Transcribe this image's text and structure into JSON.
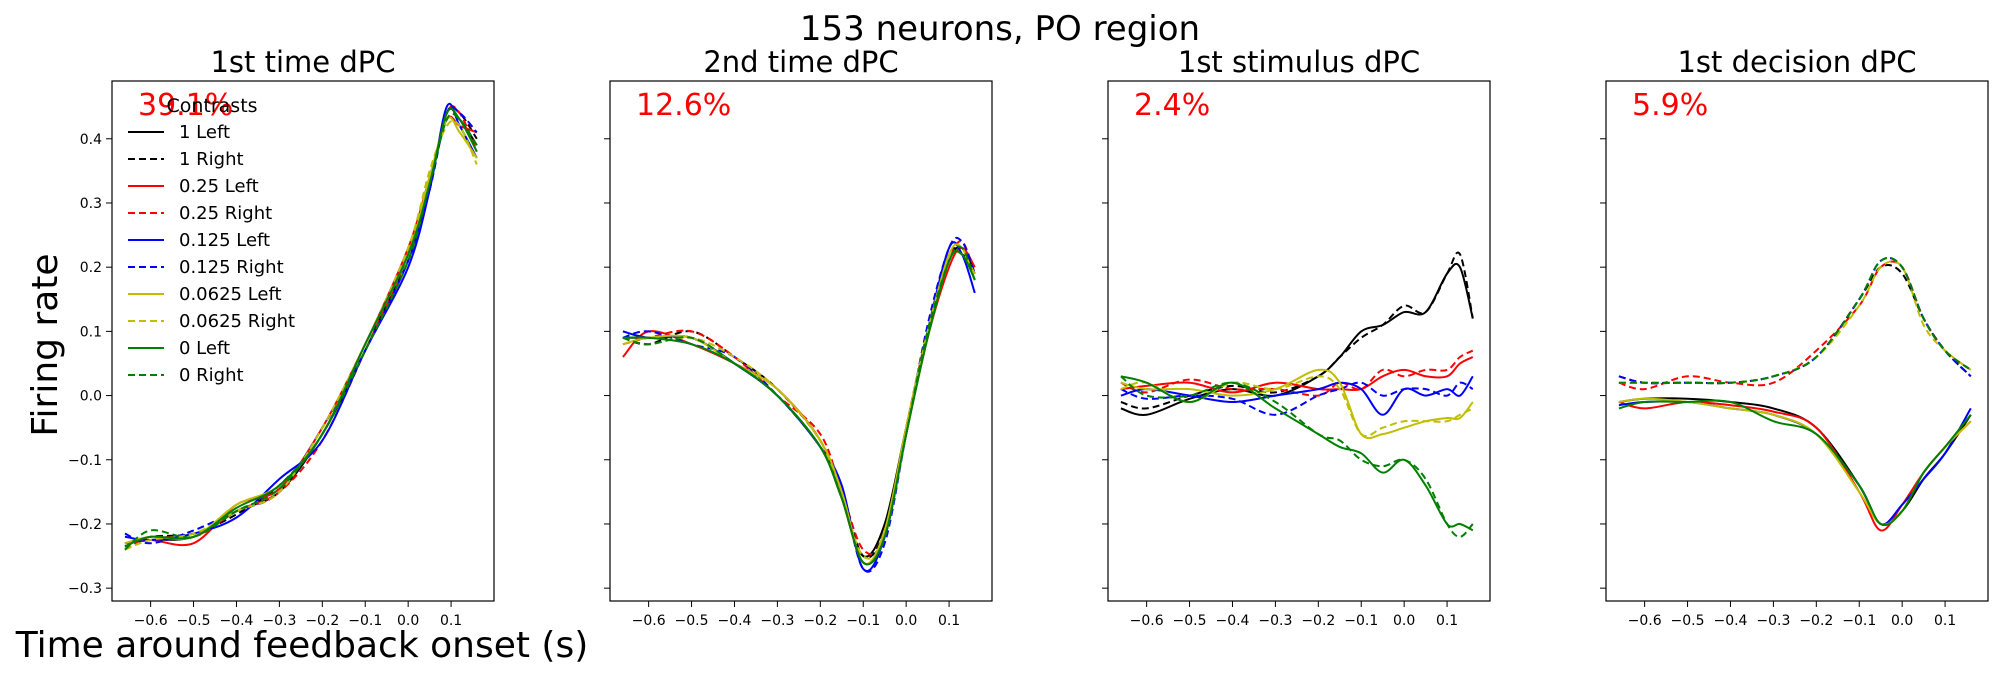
{
  "figure": {
    "suptitle": "153 neurons, PO region",
    "xlabel": "Time around feedback onset (s)",
    "ylabel": "Firing rate"
  },
  "legend": {
    "title": "Contrasts",
    "entries": [
      "1 Left",
      "1 Right",
      "0.25 Left",
      "0.25 Right",
      "0.125 Left",
      "0.125 Right",
      "0.0625 Left",
      "0.0625 Right",
      "0 Left",
      "0 Right"
    ]
  },
  "series_styles": [
    {
      "color": "#000000",
      "dash": "solid"
    },
    {
      "color": "#000000",
      "dash": "dashed"
    },
    {
      "color": "#ff0000",
      "dash": "solid"
    },
    {
      "color": "#ff0000",
      "dash": "dashed"
    },
    {
      "color": "#0000ff",
      "dash": "solid"
    },
    {
      "color": "#0000ff",
      "dash": "dashed"
    },
    {
      "color": "#bfbf00",
      "dash": "solid"
    },
    {
      "color": "#bfbf00",
      "dash": "dashed"
    },
    {
      "color": "#008000",
      "dash": "solid"
    },
    {
      "color": "#008000",
      "dash": "dashed"
    }
  ],
  "chart_data": [
    {
      "type": "line",
      "title": "1st time dPC",
      "variance_label": "39.1%",
      "xlim": [
        -0.69,
        0.2
      ],
      "ylim": [
        -0.32,
        0.49
      ],
      "xticks": [
        -0.6,
        -0.5,
        -0.4,
        -0.3,
        -0.2,
        -0.1,
        0.0,
        0.1
      ],
      "xtick_labels": [
        "−0.6",
        "−0.5",
        "−0.4",
        "−0.3",
        "−0.2",
        "−0.1",
        "0.0",
        "0.1"
      ],
      "yticks": [
        -0.3,
        -0.2,
        -0.1,
        0.0,
        0.1,
        0.2,
        0.3,
        0.4
      ],
      "ytick_labels": [
        "−0.3",
        "−0.2",
        "−0.1",
        "0.0",
        "0.1",
        "0.2",
        "0.3",
        "0.4"
      ],
      "x": [
        -0.66,
        -0.6,
        -0.5,
        -0.4,
        -0.3,
        -0.2,
        -0.1,
        0.0,
        0.05,
        0.09,
        0.12,
        0.16
      ],
      "series": [
        {
          "values": [
            -0.23,
            -0.225,
            -0.22,
            -0.18,
            -0.15,
            -0.06,
            0.07,
            0.22,
            0.33,
            0.44,
            0.43,
            0.39
          ]
        },
        {
          "values": [
            -0.235,
            -0.22,
            -0.215,
            -0.185,
            -0.14,
            -0.06,
            0.08,
            0.21,
            0.33,
            0.44,
            0.44,
            0.4
          ]
        },
        {
          "values": [
            -0.23,
            -0.225,
            -0.23,
            -0.17,
            -0.145,
            -0.05,
            0.08,
            0.23,
            0.34,
            0.43,
            0.42,
            0.41
          ]
        },
        {
          "values": [
            -0.24,
            -0.22,
            -0.22,
            -0.18,
            -0.15,
            -0.07,
            0.07,
            0.22,
            0.33,
            0.44,
            0.44,
            0.38
          ]
        },
        {
          "values": [
            -0.22,
            -0.225,
            -0.215,
            -0.19,
            -0.13,
            -0.07,
            0.07,
            0.2,
            0.32,
            0.45,
            0.42,
            0.37
          ]
        },
        {
          "values": [
            -0.215,
            -0.23,
            -0.21,
            -0.18,
            -0.15,
            -0.05,
            0.07,
            0.21,
            0.32,
            0.44,
            0.44,
            0.41
          ]
        },
        {
          "values": [
            -0.23,
            -0.22,
            -0.22,
            -0.17,
            -0.14,
            -0.06,
            0.08,
            0.22,
            0.34,
            0.43,
            0.41,
            0.37
          ]
        },
        {
          "values": [
            -0.24,
            -0.225,
            -0.215,
            -0.18,
            -0.15,
            -0.05,
            0.08,
            0.23,
            0.35,
            0.42,
            0.42,
            0.36
          ]
        },
        {
          "values": [
            -0.235,
            -0.22,
            -0.22,
            -0.175,
            -0.14,
            -0.06,
            0.08,
            0.22,
            0.33,
            0.44,
            0.43,
            0.38
          ]
        },
        {
          "values": [
            -0.24,
            -0.21,
            -0.22,
            -0.18,
            -0.145,
            -0.06,
            0.07,
            0.21,
            0.33,
            0.43,
            0.43,
            0.39
          ]
        }
      ]
    },
    {
      "type": "line",
      "title": "2nd time dPC",
      "variance_label": "12.6%",
      "xlim": [
        -0.69,
        0.2
      ],
      "ylim": [
        -0.32,
        0.49
      ],
      "xticks": [
        -0.6,
        -0.5,
        -0.4,
        -0.3,
        -0.2,
        -0.1,
        0.0,
        0.1
      ],
      "xtick_labels": [
        "−0.6",
        "−0.5",
        "−0.4",
        "−0.3",
        "−0.2",
        "−0.1",
        "0.0",
        "0.1"
      ],
      "yticks": [
        -0.3,
        -0.2,
        -0.1,
        0.0,
        0.1,
        0.2,
        0.3,
        0.4
      ],
      "ytick_labels": [],
      "x": [
        -0.66,
        -0.6,
        -0.5,
        -0.4,
        -0.3,
        -0.2,
        -0.15,
        -0.1,
        -0.05,
        0.0,
        0.05,
        0.1,
        0.13,
        0.16
      ],
      "series": [
        {
          "values": [
            0.09,
            0.09,
            0.09,
            0.05,
            0.0,
            -0.08,
            -0.16,
            -0.25,
            -0.2,
            -0.05,
            0.1,
            0.21,
            0.23,
            0.19
          ]
        },
        {
          "values": [
            0.09,
            0.08,
            0.1,
            0.06,
            0.01,
            -0.07,
            -0.15,
            -0.25,
            -0.21,
            -0.06,
            0.1,
            0.22,
            0.22,
            0.2
          ]
        },
        {
          "values": [
            0.06,
            0.1,
            0.08,
            0.05,
            0.01,
            -0.07,
            -0.16,
            -0.26,
            -0.22,
            -0.06,
            0.09,
            0.2,
            0.23,
            0.2
          ]
        },
        {
          "values": [
            0.08,
            0.09,
            0.1,
            0.06,
            0.0,
            -0.06,
            -0.15,
            -0.24,
            -0.22,
            -0.05,
            0.1,
            0.21,
            0.24,
            0.19
          ]
        },
        {
          "values": [
            0.1,
            0.09,
            0.09,
            0.05,
            0.0,
            -0.08,
            -0.14,
            -0.27,
            -0.22,
            -0.06,
            0.1,
            0.23,
            0.22,
            0.16
          ]
        },
        {
          "values": [
            0.09,
            0.1,
            0.08,
            0.06,
            0.0,
            -0.08,
            -0.15,
            -0.27,
            -0.23,
            -0.06,
            0.11,
            0.23,
            0.24,
            0.19
          ]
        },
        {
          "values": [
            0.08,
            0.09,
            0.09,
            0.05,
            0.01,
            -0.07,
            -0.15,
            -0.26,
            -0.21,
            -0.05,
            0.1,
            0.22,
            0.23,
            0.18
          ]
        },
        {
          "values": [
            0.09,
            0.08,
            0.09,
            0.06,
            0.01,
            -0.07,
            -0.16,
            -0.25,
            -0.22,
            -0.06,
            0.09,
            0.21,
            0.22,
            0.19
          ]
        },
        {
          "values": [
            0.09,
            0.09,
            0.08,
            0.05,
            0.0,
            -0.08,
            -0.16,
            -0.26,
            -0.22,
            -0.06,
            0.09,
            0.21,
            0.22,
            0.18
          ]
        },
        {
          "values": [
            0.09,
            0.08,
            0.09,
            0.05,
            0.0,
            -0.08,
            -0.16,
            -0.26,
            -0.22,
            -0.06,
            0.1,
            0.21,
            0.23,
            0.18
          ]
        }
      ]
    },
    {
      "type": "line",
      "title": "1st stimulus dPC",
      "variance_label": "2.4%",
      "xlim": [
        -0.69,
        0.2
      ],
      "ylim": [
        -0.32,
        0.49
      ],
      "xticks": [
        -0.6,
        -0.5,
        -0.4,
        -0.3,
        -0.2,
        -0.1,
        0.0,
        0.1
      ],
      "xtick_labels": [
        "−0.6",
        "−0.5",
        "−0.4",
        "−0.3",
        "−0.2",
        "−0.1",
        "0.0",
        "0.1"
      ],
      "yticks": [
        -0.3,
        -0.2,
        -0.1,
        0.0,
        0.1,
        0.2,
        0.3,
        0.4
      ],
      "ytick_labels": [],
      "x": [
        -0.66,
        -0.6,
        -0.5,
        -0.4,
        -0.3,
        -0.2,
        -0.15,
        -0.1,
        -0.05,
        0.0,
        0.05,
        0.1,
        0.13,
        0.16
      ],
      "series": [
        {
          "values": [
            -0.02,
            -0.03,
            -0.005,
            0.01,
            0.0,
            0.03,
            0.06,
            0.1,
            0.11,
            0.13,
            0.13,
            0.19,
            0.2,
            0.12
          ]
        },
        {
          "values": [
            -0.01,
            -0.02,
            0.0,
            0.015,
            0.005,
            0.03,
            0.06,
            0.09,
            0.11,
            0.14,
            0.13,
            0.19,
            0.22,
            0.12
          ]
        },
        {
          "values": [
            0.01,
            0.015,
            0.02,
            0.005,
            0.02,
            0.01,
            0.01,
            0.01,
            0.03,
            0.04,
            0.03,
            0.03,
            0.05,
            0.06
          ]
        },
        {
          "values": [
            0.02,
            0.005,
            0.025,
            0.01,
            0.01,
            0.0,
            0.02,
            0.01,
            0.04,
            0.03,
            0.04,
            0.04,
            0.06,
            0.07
          ]
        },
        {
          "values": [
            0.0,
            0.01,
            0.0,
            -0.01,
            0.0,
            0.01,
            0.02,
            0.01,
            -0.03,
            0.01,
            0.0,
            0.01,
            0.0,
            0.03
          ]
        },
        {
          "values": [
            0.01,
            -0.005,
            0.0,
            -0.005,
            -0.03,
            0.0,
            0.01,
            0.02,
            0.0,
            0.01,
            0.01,
            0.0,
            0.02,
            0.01
          ]
        },
        {
          "values": [
            0.02,
            0.01,
            0.01,
            0.0,
            0.01,
            0.04,
            0.02,
            -0.06,
            -0.06,
            -0.05,
            -0.04,
            -0.035,
            -0.035,
            -0.01
          ]
        },
        {
          "values": [
            0.01,
            0.02,
            -0.01,
            0.02,
            0.01,
            0.03,
            0.01,
            -0.06,
            -0.05,
            -0.04,
            -0.04,
            -0.04,
            -0.03,
            -0.02
          ]
        },
        {
          "values": [
            0.03,
            0.02,
            -0.01,
            0.02,
            -0.02,
            -0.06,
            -0.08,
            -0.09,
            -0.12,
            -0.1,
            -0.14,
            -0.2,
            -0.2,
            -0.21
          ]
        },
        {
          "values": [
            0.03,
            0.0,
            0.0,
            0.02,
            -0.01,
            -0.06,
            -0.07,
            -0.1,
            -0.11,
            -0.1,
            -0.13,
            -0.2,
            -0.22,
            -0.2
          ]
        }
      ]
    },
    {
      "type": "line",
      "title": "1st decision dPC",
      "variance_label": "5.9%",
      "xlim": [
        -0.69,
        0.2
      ],
      "ylim": [
        -0.32,
        0.49
      ],
      "xticks": [
        -0.6,
        -0.5,
        -0.4,
        -0.3,
        -0.2,
        -0.1,
        0.0,
        0.1
      ],
      "xtick_labels": [
        "−0.6",
        "−0.5",
        "−0.4",
        "−0.3",
        "−0.2",
        "−0.1",
        "0.0",
        "0.1"
      ],
      "yticks": [
        -0.3,
        -0.2,
        -0.1,
        0.0,
        0.1,
        0.2,
        0.3,
        0.4
      ],
      "ytick_labels": [],
      "x": [
        -0.66,
        -0.6,
        -0.5,
        -0.4,
        -0.3,
        -0.2,
        -0.1,
        -0.05,
        0.0,
        0.05,
        0.1,
        0.16
      ],
      "series": [
        {
          "values": [
            -0.01,
            -0.005,
            -0.005,
            -0.01,
            -0.02,
            -0.05,
            -0.14,
            -0.2,
            -0.18,
            -0.13,
            -0.09,
            -0.03
          ]
        },
        {
          "values": [
            0.03,
            0.02,
            0.02,
            0.02,
            0.03,
            0.06,
            0.15,
            0.2,
            0.19,
            0.12,
            0.07,
            0.03
          ]
        },
        {
          "values": [
            -0.01,
            -0.02,
            -0.01,
            -0.015,
            -0.025,
            -0.05,
            -0.15,
            -0.21,
            -0.17,
            -0.12,
            -0.08,
            -0.04
          ]
        },
        {
          "values": [
            0.02,
            0.01,
            0.03,
            0.02,
            0.02,
            0.07,
            0.14,
            0.2,
            0.2,
            0.12,
            0.07,
            0.04
          ]
        },
        {
          "values": [
            -0.015,
            -0.01,
            -0.01,
            -0.02,
            -0.03,
            -0.06,
            -0.14,
            -0.2,
            -0.17,
            -0.13,
            -0.09,
            -0.02
          ]
        },
        {
          "values": [
            0.03,
            0.02,
            0.02,
            0.02,
            0.03,
            0.06,
            0.15,
            0.21,
            0.2,
            0.12,
            0.07,
            0.03
          ]
        },
        {
          "values": [
            -0.01,
            -0.005,
            -0.01,
            -0.02,
            -0.03,
            -0.06,
            -0.15,
            -0.2,
            -0.18,
            -0.12,
            -0.08,
            -0.04
          ]
        },
        {
          "values": [
            0.02,
            0.02,
            0.02,
            0.02,
            0.03,
            0.06,
            0.14,
            0.2,
            0.2,
            0.11,
            0.07,
            0.04
          ]
        },
        {
          "values": [
            -0.02,
            -0.01,
            -0.01,
            -0.01,
            -0.04,
            -0.06,
            -0.14,
            -0.2,
            -0.18,
            -0.12,
            -0.08,
            -0.03
          ]
        },
        {
          "values": [
            0.02,
            0.02,
            0.02,
            0.02,
            0.03,
            0.06,
            0.15,
            0.21,
            0.2,
            0.12,
            0.07,
            0.04
          ]
        }
      ]
    }
  ]
}
